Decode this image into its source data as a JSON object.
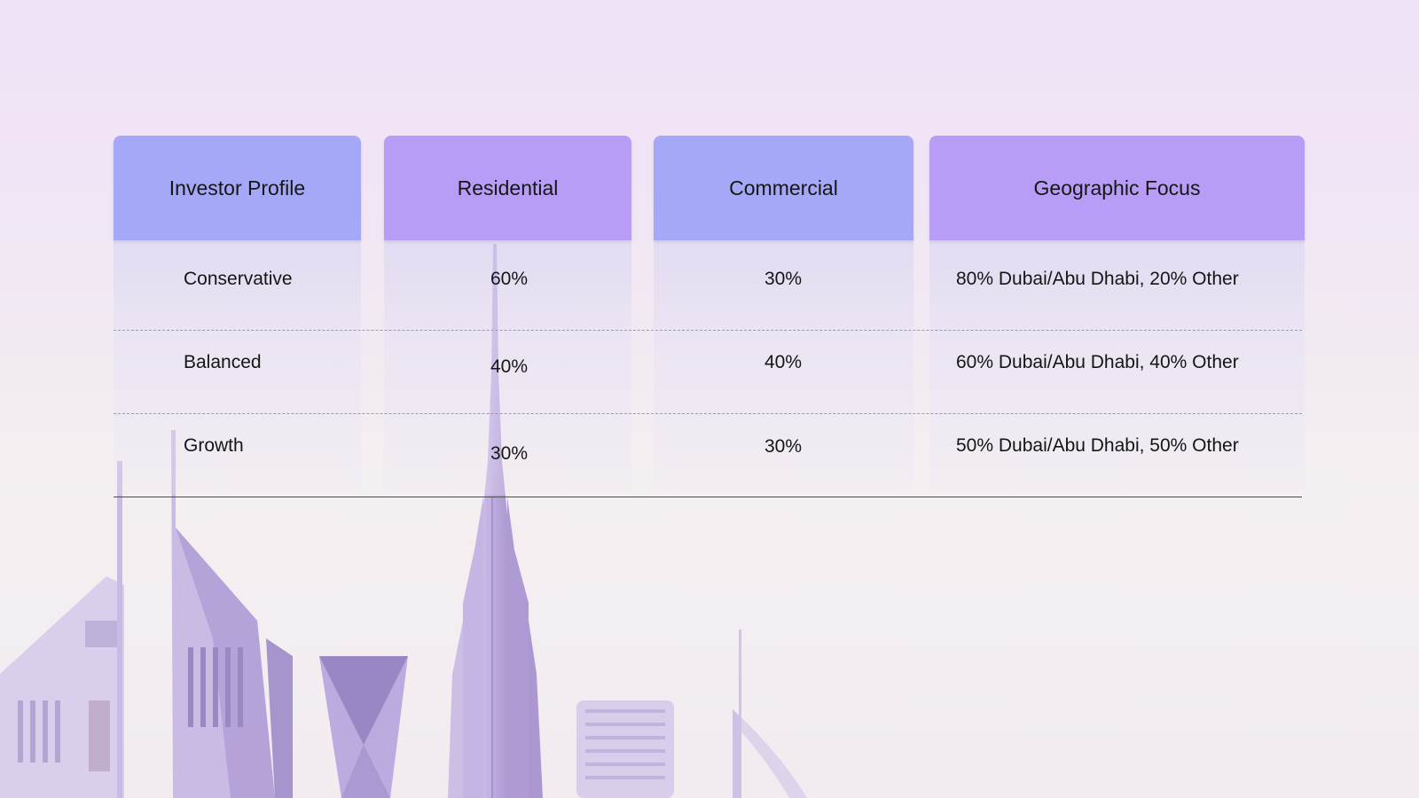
{
  "table": {
    "headers": [
      "Investor Profile",
      "Residential",
      "Commercial",
      "Geographic Focus"
    ],
    "rows": [
      [
        "Conservative",
        "60%",
        "30%",
        "80% Dubai/Abu Dhabi, 20% Other"
      ],
      [
        "Balanced",
        "40%",
        "40%",
        "60% Dubai/Abu Dhabi, 40% Other"
      ],
      [
        "Growth",
        "30%",
        "30%",
        "50% Dubai/Abu Dhabi, 50% Other"
      ]
    ]
  },
  "colors": {
    "header_blue": "#a4a8f7",
    "header_violet": "#b89df7",
    "skyline_tint": "#b9a7dc"
  },
  "background_image": "dubai-skyline-illustration"
}
